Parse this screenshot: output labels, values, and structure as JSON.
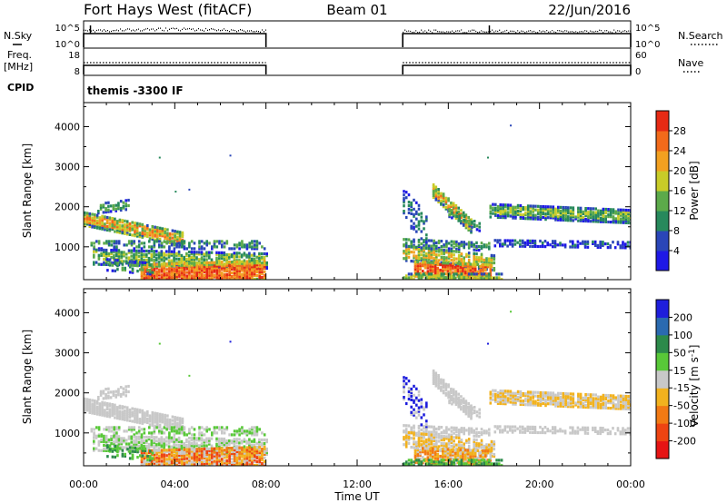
{
  "header": {
    "station": "Fort Hays West (fitACF)",
    "beam": "Beam 01",
    "date": "22/Jun/2016"
  },
  "panel_labels": {
    "nsky": "N.Sky",
    "freq": "Freq.",
    "mhz": "[MHz]",
    "cpid": "CPID",
    "nsearch": "N.Search",
    "nave": "Nave",
    "cpid_value": "themis -3300 IF"
  },
  "chart_data": [
    {
      "type": "line",
      "panel": "noise",
      "left_ticks": [
        "10^5",
        "10^0"
      ],
      "right_ticks": [
        "10^5",
        "10^0"
      ],
      "segments": [
        {
          "x_start": 0.0,
          "x_end": 8.0
        },
        {
          "x_start": 14.0,
          "x_end": 24.0
        }
      ]
    },
    {
      "type": "line",
      "panel": "frequency",
      "left_ticks": [
        "18",
        "8"
      ],
      "right_ticks": [
        "60",
        "0"
      ],
      "segments": [
        {
          "x_start": 0.0,
          "x_end": 8.0
        },
        {
          "x_start": 14.0,
          "x_end": 24.0
        }
      ]
    },
    {
      "type": "heatmap",
      "panel": "power",
      "ylabel": "Slant Range [km]",
      "yticks": [
        "1000",
        "2000",
        "3000",
        "4000"
      ],
      "ylim": [
        180,
        4600
      ],
      "colorbar_label": "Power [dB]",
      "colorbar_ticks": [
        "4",
        "8",
        "12",
        "16",
        "20",
        "24",
        "28"
      ],
      "colorbar_colors": [
        "#1e18e6",
        "#2a46b8",
        "#27895c",
        "#5caa4a",
        "#c8cc28",
        "#f2a020",
        "#f26a1a",
        "#e62a14"
      ],
      "scatter_points_km": [
        {
          "x": 3.3,
          "y": 3250
        },
        {
          "x": 6.4,
          "y": 3300
        },
        {
          "x": 4.0,
          "y": 2400
        },
        {
          "x": 4.6,
          "y": 2450
        },
        {
          "x": 17.7,
          "y": 3250
        },
        {
          "x": 18.7,
          "y": 4050
        }
      ]
    },
    {
      "type": "heatmap",
      "panel": "velocity",
      "ylabel": "Slant Range [km]",
      "yticks": [
        "1000",
        "2000",
        "3000",
        "4000"
      ],
      "ylim": [
        180,
        4600
      ],
      "colorbar_label": "Velocity [m s-1]",
      "colorbar_ticks": [
        "200",
        "100",
        "50",
        "15",
        "-15",
        "-50",
        "-100",
        "-200"
      ],
      "colorbar_colors": [
        "#1e1edc",
        "#2a6ab0",
        "#2c8a4a",
        "#58c838",
        "#c8c8c8",
        "#f2b21e",
        "#f27a14",
        "#ee4412",
        "#e61414"
      ],
      "scatter_points_km": [
        {
          "x": 3.3,
          "y": 3250
        },
        {
          "x": 6.4,
          "y": 3300
        },
        {
          "x": 4.6,
          "y": 2450
        },
        {
          "x": 17.7,
          "y": 3250
        },
        {
          "x": 18.7,
          "y": 4050
        }
      ]
    }
  ],
  "time_axis": {
    "xlabel": "Time UT",
    "ticks": [
      "00:00",
      "04:00",
      "08:00",
      "12:00",
      "16:00",
      "20:00",
      "00:00"
    ],
    "xlim": [
      0,
      24
    ]
  }
}
